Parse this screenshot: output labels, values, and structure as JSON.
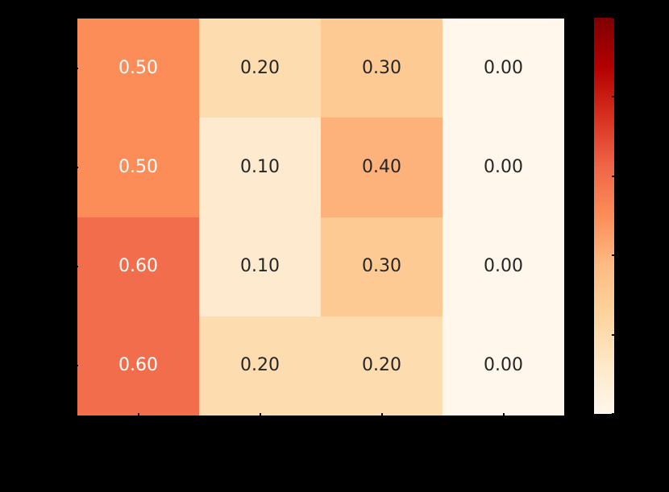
{
  "chart_data": {
    "type": "heatmap",
    "rows": 4,
    "cols": 4,
    "values": [
      [
        0.5,
        0.2,
        0.3,
        0.0
      ],
      [
        0.5,
        0.1,
        0.4,
        0.0
      ],
      [
        0.6,
        0.1,
        0.3,
        0.0
      ],
      [
        0.6,
        0.2,
        0.2,
        0.0
      ]
    ],
    "cell_labels": [
      [
        "0.50",
        "0.20",
        "0.30",
        "0.00"
      ],
      [
        "0.50",
        "0.10",
        "0.40",
        "0.00"
      ],
      [
        "0.60",
        "0.10",
        "0.30",
        "0.00"
      ],
      [
        "0.60",
        "0.20",
        "0.20",
        "0.00"
      ]
    ],
    "colormap": "OrRd",
    "vmin": 0,
    "vmax": 1,
    "colormap_stops": [
      {
        "pos": 0.0,
        "color": "#fff7ec"
      },
      {
        "pos": 0.125,
        "color": "#fee8c8"
      },
      {
        "pos": 0.25,
        "color": "#fdd49e"
      },
      {
        "pos": 0.375,
        "color": "#fdbb84"
      },
      {
        "pos": 0.5,
        "color": "#fc8d59"
      },
      {
        "pos": 0.625,
        "color": "#ef6548"
      },
      {
        "pos": 0.75,
        "color": "#d7301f"
      },
      {
        "pos": 0.875,
        "color": "#b30000"
      },
      {
        "pos": 1.0,
        "color": "#7f0000"
      }
    ],
    "colorbar": {
      "orientation": "vertical",
      "position": "right",
      "tick_count": 6
    },
    "axes": {
      "x_tick_count": 4,
      "y_tick_count": 4,
      "tick_color": "#000000"
    },
    "annotation_text_colors": {
      "light": "#ffffff",
      "dark": "#262626"
    },
    "background_color": "#000000",
    "grid": false,
    "legend_position": "none"
  }
}
